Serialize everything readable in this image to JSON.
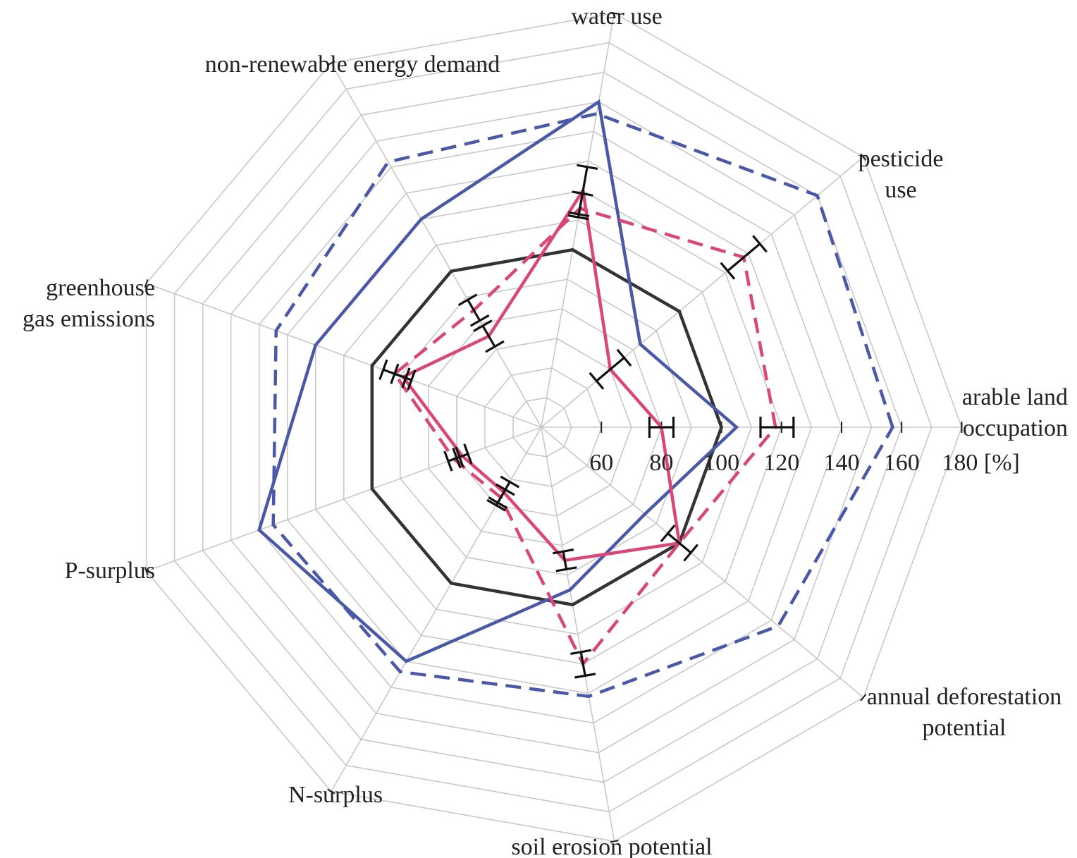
{
  "chart_data": {
    "type": "radar",
    "axes": [
      "arable land occupation",
      "pesticide use",
      "water use",
      "non-renewable energy demand",
      "greenhouse gas emissions",
      "P-surplus",
      "N-surplus",
      "soil erosion potential",
      "annual deforestation potential"
    ],
    "axis_label_lines": [
      [
        "arable land",
        "occupation"
      ],
      [
        "pesticide",
        "use"
      ],
      [
        "water use"
      ],
      [
        "non-renewable energy demand"
      ],
      [
        "greenhouse",
        "gas emissions"
      ],
      [
        "P-surplus"
      ],
      [
        "N-surplus"
      ],
      [
        "soil erosion potential"
      ],
      [
        "annual deforestation",
        "potential"
      ]
    ],
    "radial_ticks": [
      "60",
      "80",
      "100",
      "120",
      "140",
      "160",
      "180 [%]"
    ],
    "radial_range": [
      40,
      180
    ],
    "series": [
      {
        "color": "#333333",
        "dash": "solid",
        "values": [
          100,
          100,
          100,
          100,
          100,
          100,
          100,
          100,
          100
        ]
      },
      {
        "color": "#4a58a8",
        "dash": "solid",
        "values": [
          105,
          83,
          150,
          120,
          120,
          140,
          130,
          95,
          85
        ]
      },
      {
        "color": "#4a58a8",
        "dash": "dashed",
        "values": [
          157,
          160,
          146,
          142,
          134,
          135,
          134,
          131,
          143
        ]
      },
      {
        "color": "#d94677",
        "dash": "solid",
        "values": [
          80,
          70,
          120,
          75,
          89,
          68,
          65,
          85,
          100
        ]
      },
      {
        "color": "#d94677",
        "dash": "dashed",
        "values": [
          118,
          128,
          114,
          85,
          92,
          71,
          67,
          120,
          100
        ]
      }
    ],
    "error_bars": [
      {
        "series": 3,
        "axis": 0,
        "low": 76,
        "high": 84
      },
      {
        "series": 4,
        "axis": 0,
        "low": 113,
        "high": 124
      },
      {
        "series": 3,
        "axis": 1,
        "low": 64,
        "high": 76
      },
      {
        "series": 4,
        "axis": 1,
        "low": 121,
        "high": 135
      },
      {
        "series": 3,
        "axis": 2,
        "low": 112,
        "high": 128
      },
      {
        "series": 4,
        "axis": 2,
        "low": 111,
        "high": 119
      },
      {
        "series": 3,
        "axis": 3,
        "low": 71,
        "high": 79
      },
      {
        "series": 4,
        "axis": 3,
        "low": 81,
        "high": 89
      },
      {
        "series": 3,
        "axis": 4,
        "low": 86,
        "high": 92
      },
      {
        "series": 4,
        "axis": 4,
        "low": 88,
        "high": 96
      },
      {
        "series": 3,
        "axis": 5,
        "low": 66,
        "high": 70
      },
      {
        "series": 4,
        "axis": 5,
        "low": 69,
        "high": 73
      },
      {
        "series": 3,
        "axis": 6,
        "low": 61,
        "high": 69
      },
      {
        "series": 4,
        "axis": 6,
        "low": 64,
        "high": 70
      },
      {
        "series": 3,
        "axis": 7,
        "low": 82,
        "high": 88
      },
      {
        "series": 4,
        "axis": 7,
        "low": 116,
        "high": 124
      },
      {
        "series": 3,
        "axis": 8,
        "low": 95,
        "high": 105
      }
    ]
  }
}
